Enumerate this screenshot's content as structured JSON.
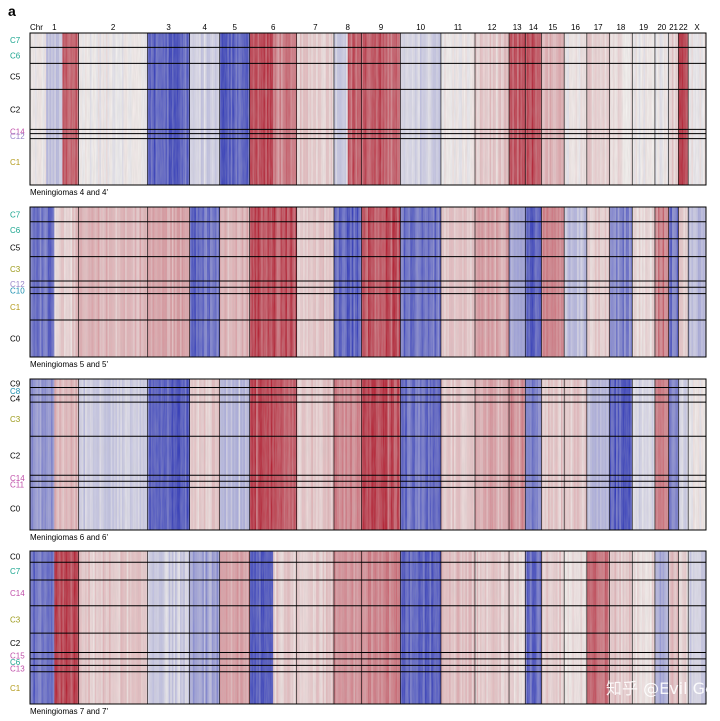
{
  "figure": {
    "panel_label": "a",
    "chromosome_header_label": "Chr",
    "watermark_text": "知乎 @Evil Genius"
  },
  "colors": {
    "gain": "#b2182b",
    "loss": "#2c35b8",
    "neutral": "#f7f4f2",
    "cluster_colors": {
      "C0": "#000000",
      "C1": "#b39a1a",
      "C2": "#000000",
      "C3": "#9c9a1a",
      "C4": "#000000",
      "C5": "#000000",
      "C6": "#1aa58f",
      "C7": "#1aa58f",
      "C8": "#1a8fb0",
      "C9": "#000000",
      "C10": "#1a8fb0",
      "C11": "#c04fa9",
      "C12": "#9a86c9",
      "C13": "#c04fa9",
      "C14": "#c04fa9",
      "C15": "#c04fa9"
    }
  },
  "chart_data": {
    "type": "heatmap",
    "value_meaning": "copy number (gain = red, loss = blue)",
    "chromosomes": [
      "1",
      "2",
      "3",
      "4",
      "5",
      "6",
      "7",
      "8",
      "9",
      "10",
      "11",
      "12",
      "13",
      "14",
      "15",
      "16",
      "17",
      "18",
      "19",
      "20",
      "21",
      "22",
      "X"
    ],
    "panels": [
      {
        "caption": "Meningiomas 4 and 4'",
        "clusters": [
          {
            "name": "C7",
            "cells": 34
          },
          {
            "name": "C6",
            "cells": 38
          },
          {
            "name": "C5",
            "cells": 62
          },
          {
            "name": "C2",
            "cells": 95
          },
          {
            "name": "C14",
            "cells": 10
          },
          {
            "name": "C12",
            "cells": 12
          },
          {
            "name": "C1",
            "cells": 110
          }
        ],
        "cnv": {
          "1": [
            0,
            -0.3,
            0.8
          ],
          "2": [
            0
          ],
          "3": [
            -0.9
          ],
          "4": [
            -0.2
          ],
          "5": [
            -0.9
          ],
          "6": [
            0.9,
            0.6
          ],
          "7": [
            0.2
          ],
          "8": [
            -0.2,
            0.8
          ],
          "9": [
            0.8
          ],
          "10": [
            -0.2
          ],
          "11": [
            0
          ],
          "12": [
            0.2
          ],
          "13": [
            0.8
          ],
          "14": [
            0.85
          ],
          "15": [
            0.3
          ],
          "16": [
            0
          ],
          "17": [
            0.2
          ],
          "18": [
            0.1
          ],
          "19": [
            0
          ],
          "20": [
            0
          ],
          "21": [
            0.2
          ],
          "22": [
            1.0
          ],
          "X": [
            0
          ]
        }
      },
      {
        "caption": "Meningiomas 5 and 5'",
        "clusters": [
          {
            "name": "C7",
            "cells": 28
          },
          {
            "name": "C6",
            "cells": 32
          },
          {
            "name": "C5",
            "cells": 34
          },
          {
            "name": "C3",
            "cells": 46
          },
          {
            "name": "C12",
            "cells": 12
          },
          {
            "name": "C10",
            "cells": 12
          },
          {
            "name": "C1",
            "cells": 50
          },
          {
            "name": "C0",
            "cells": 70
          }
        ],
        "cnv": {
          "1": [
            -0.8,
            0.2
          ],
          "2": [
            0.3
          ],
          "3": [
            0.4
          ],
          "4": [
            -0.8
          ],
          "5": [
            0.3
          ],
          "6": [
            0.9
          ],
          "7": [
            0.2
          ],
          "8": [
            -0.9
          ],
          "9": [
            0.9
          ],
          "10": [
            -0.8
          ],
          "11": [
            0.2
          ],
          "12": [
            0.4
          ],
          "13": [
            -0.5
          ],
          "14": [
            -0.9
          ],
          "15": [
            0.6
          ],
          "16": [
            -0.3
          ],
          "17": [
            0.2
          ],
          "18": [
            -0.7
          ],
          "19": [
            0.1
          ],
          "20": [
            0.6
          ],
          "21": [
            -0.8
          ],
          "22": [
            0.2
          ],
          "X": [
            -0.3
          ]
        }
      },
      {
        "caption": "Meningiomas 6 and 6'",
        "clusters": [
          {
            "name": "C9",
            "cells": 14
          },
          {
            "name": "C8",
            "cells": 12
          },
          {
            "name": "C4",
            "cells": 12
          },
          {
            "name": "C3",
            "cells": 56
          },
          {
            "name": "C2",
            "cells": 64
          },
          {
            "name": "C14",
            "cells": 10
          },
          {
            "name": "C11",
            "cells": 10
          },
          {
            "name": "C0",
            "cells": 70
          }
        ],
        "cnv": {
          "1": [
            -0.6,
            0.3
          ],
          "2": [
            -0.2
          ],
          "3": [
            -0.9
          ],
          "4": [
            0.2
          ],
          "5": [
            -0.3
          ],
          "6": [
            0.9
          ],
          "7": [
            0.2
          ],
          "8": [
            0.6
          ],
          "9": [
            0.9
          ],
          "10": [
            -0.8
          ],
          "11": [
            0.2
          ],
          "12": [
            0.4
          ],
          "13": [
            0.5
          ],
          "14": [
            -0.7
          ],
          "15": [
            0.2
          ],
          "16": [
            0.2
          ],
          "17": [
            -0.3
          ],
          "18": [
            -0.9
          ],
          "19": [
            -0.2
          ],
          "20": [
            0.6
          ],
          "21": [
            -0.8
          ],
          "22": [
            -0.2
          ],
          "X": [
            0
          ]
        }
      },
      {
        "caption": "Meningiomas 7 and 7'",
        "clusters": [
          {
            "name": "C0",
            "cells": 14
          },
          {
            "name": "C7",
            "cells": 22
          },
          {
            "name": "C14",
            "cells": 32
          },
          {
            "name": "C3",
            "cells": 34
          },
          {
            "name": "C2",
            "cells": 24
          },
          {
            "name": "C15",
            "cells": 8
          },
          {
            "name": "C6",
            "cells": 8
          },
          {
            "name": "C13",
            "cells": 8
          },
          {
            "name": "C1",
            "cells": 40
          }
        ],
        "cnv": {
          "1": [
            -0.8,
            0.9
          ],
          "2": [
            0.2
          ],
          "3": [
            -0.2
          ],
          "4": [
            -0.5
          ],
          "5": [
            0.4
          ],
          "6": [
            -0.9,
            0.2
          ],
          "7": [
            0.2
          ],
          "8": [
            0.5
          ],
          "9": [
            0.6
          ],
          "10": [
            -0.9
          ],
          "11": [
            0.3
          ],
          "12": [
            0.2
          ],
          "13": [
            0.1
          ],
          "14": [
            -0.8
          ],
          "15": [
            0.2
          ],
          "16": [
            0.1
          ],
          "17": [
            0.7
          ],
          "18": [
            0.2
          ],
          "19": [
            0.1
          ],
          "20": [
            -0.4
          ],
          "21": [
            0.3
          ],
          "22": [
            0.1
          ],
          "X": [
            -0.2
          ]
        }
      }
    ]
  }
}
